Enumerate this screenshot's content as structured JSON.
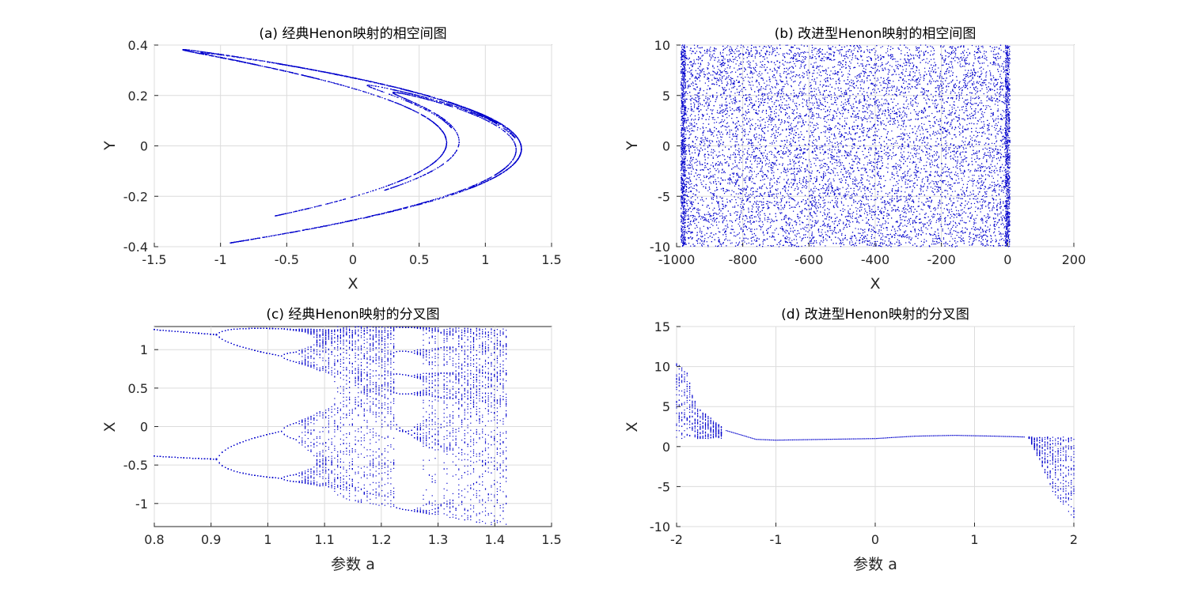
{
  "figure": {
    "background": "#ffffff",
    "marker_color": "#0000cc"
  },
  "chart_data": [
    {
      "id": "a",
      "type": "scatter",
      "title": "(a) 经典Henon映射的相空间图",
      "xlabel": "X",
      "ylabel": "Y",
      "xlim": [
        -1.5,
        1.5
      ],
      "ylim": [
        -0.4,
        0.4
      ],
      "xticks": [
        -1.5,
        -1,
        -0.5,
        0,
        0.5,
        1,
        1.5
      ],
      "xtick_labels": [
        "-1.5",
        "-1",
        "-0.5",
        "0",
        "0.5",
        "1",
        "1.5"
      ],
      "yticks": [
        -0.4,
        -0.2,
        0,
        0.2,
        0.4
      ],
      "ytick_labels": [
        "-0.4",
        "-0.2",
        "0",
        "0.2",
        "0.4"
      ],
      "grid": true,
      "series": [
        {
          "generator": "henon",
          "a": 1.4,
          "b": 0.3,
          "x0": 0.1,
          "y0": 0.1,
          "transient": 100,
          "n": 5000,
          "color": "#0000cc"
        }
      ]
    },
    {
      "id": "b",
      "type": "scatter",
      "title": "(b) 改进型Henon映射的相空间图",
      "xlabel": "X",
      "ylabel": "Y",
      "xlim": [
        -1000,
        200
      ],
      "ylim": [
        -10,
        10
      ],
      "xticks": [
        -1000,
        -800,
        -600,
        -400,
        -200,
        0,
        200
      ],
      "xtick_labels": [
        "-1000",
        "-800",
        "-600",
        "-400",
        "-200",
        "0",
        "200"
      ],
      "yticks": [
        -10,
        -5,
        0,
        5,
        10
      ],
      "ytick_labels": [
        "-10",
        "-5",
        "0",
        "5",
        "10"
      ],
      "grid": true,
      "series": [
        {
          "generator": "uniform",
          "x_range": [
            -980,
            0
          ],
          "y_range": [
            -10,
            10
          ],
          "n": 12000,
          "edge_density_x": [
            -980,
            0
          ],
          "color": "#0000cc"
        }
      ]
    },
    {
      "id": "c",
      "type": "scatter",
      "title": "(c) 经典Henon映射的分叉图",
      "xlabel": "参数 a",
      "ylabel": "X",
      "xlim": [
        0.8,
        1.5
      ],
      "ylim": [
        -1.3,
        1.3
      ],
      "xticks": [
        0.8,
        0.9,
        1,
        1.1,
        1.2,
        1.3,
        1.4,
        1.5
      ],
      "xtick_labels": [
        "0.8",
        "0.9",
        "1",
        "1.1",
        "1.2",
        "1.3",
        "1.4",
        "1.5"
      ],
      "yticks": [
        -1,
        -0.5,
        0,
        0.5,
        1
      ],
      "ytick_labels": [
        "-1",
        "-0.5",
        "0",
        "0.5",
        "1"
      ],
      "grid": true,
      "series": [
        {
          "generator": "henon-bifurcation",
          "a_range": [
            0.8,
            1.42
          ],
          "a_steps": 120,
          "b": 0.3,
          "transient": 300,
          "samples": 60,
          "color": "#0000cc"
        }
      ]
    },
    {
      "id": "d",
      "type": "scatter",
      "title": "(d) 改进型Henon映射的分叉图",
      "xlabel": "参数 a",
      "ylabel": "X",
      "xlim": [
        -2,
        2
      ],
      "ylim": [
        -10,
        15
      ],
      "xticks": [
        -2,
        -1,
        0,
        1,
        2
      ],
      "xtick_labels": [
        "-2",
        "-1",
        "0",
        "1",
        "2"
      ],
      "yticks": [
        -10,
        -5,
        0,
        5,
        10,
        15
      ],
      "ytick_labels": [
        "-10",
        "-5",
        "0",
        "5",
        "10",
        "15"
      ],
      "grid": true,
      "series": [
        {
          "generator": "piecewise-bifurcation",
          "stable_curve": [
            [
              -1.5,
              2.0
            ],
            [
              -1.2,
              0.9
            ],
            [
              -1.0,
              0.8
            ],
            [
              -0.5,
              0.9
            ],
            [
              0.0,
              1.0
            ],
            [
              0.4,
              1.3
            ],
            [
              0.8,
              1.4
            ],
            [
              1.2,
              1.3
            ],
            [
              1.5,
              1.2
            ]
          ],
          "left_band": {
            "a_range": [
              -2,
              -1.55
            ],
            "top": [
              [
                -2,
                10.5
              ],
              [
                -1.9,
                9.5
              ],
              [
                -1.8,
                5.0
              ],
              [
                -1.7,
                4.0
              ],
              [
                -1.55,
                2.5
              ]
            ],
            "bottom": 1.0,
            "columns": 18
          },
          "right_band": {
            "a_range": [
              1.55,
              2
            ],
            "top": 1.2,
            "bottom": [
              [
                1.55,
                1.0
              ],
              [
                1.7,
                -3.0
              ],
              [
                1.8,
                -6.0
              ],
              [
                1.9,
                -7.5
              ],
              [
                2.0,
                -9.0
              ]
            ],
            "columns": 18
          },
          "color": "#0000cc"
        }
      ]
    }
  ]
}
